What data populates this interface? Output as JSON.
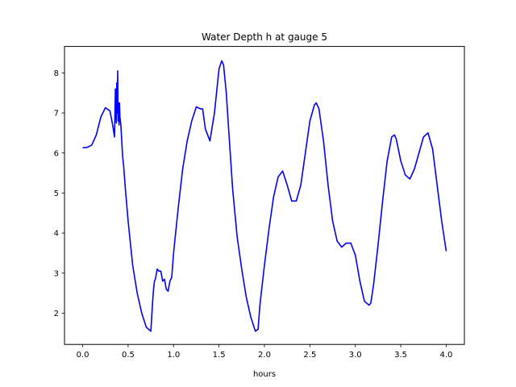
{
  "chart_data": {
    "type": "line",
    "title": "Water Depth h at gauge 5",
    "xlabel": "hours",
    "ylabel": "",
    "xlim": [
      -0.2,
      4.2
    ],
    "ylim": [
      1.22,
      8.66
    ],
    "xticks": [
      0.0,
      0.5,
      1.0,
      1.5,
      2.0,
      2.5,
      3.0,
      3.5,
      4.0
    ],
    "xtick_labels": [
      "0.0",
      "0.5",
      "1.0",
      "1.5",
      "2.0",
      "2.5",
      "3.0",
      "3.5",
      "4.0"
    ],
    "yticks": [
      2,
      3,
      4,
      5,
      6,
      7,
      8
    ],
    "ytick_labels": [
      "2",
      "3",
      "4",
      "5",
      "6",
      "7",
      "8"
    ],
    "grid": false,
    "series": [
      {
        "color": "#0000ff",
        "x": [
          0.0,
          0.05,
          0.1,
          0.15,
          0.2,
          0.25,
          0.3,
          0.33,
          0.35,
          0.36,
          0.37,
          0.375,
          0.38,
          0.385,
          0.39,
          0.395,
          0.4,
          0.405,
          0.41,
          0.42,
          0.43,
          0.44,
          0.45,
          0.47,
          0.5,
          0.55,
          0.6,
          0.65,
          0.7,
          0.75,
          0.77,
          0.78,
          0.79,
          0.8,
          0.82,
          0.84,
          0.86,
          0.88,
          0.9,
          0.92,
          0.94,
          0.96,
          0.98,
          1.0,
          1.05,
          1.1,
          1.15,
          1.2,
          1.25,
          1.3,
          1.32,
          1.35,
          1.4,
          1.45,
          1.5,
          1.53,
          1.55,
          1.58,
          1.6,
          1.65,
          1.7,
          1.75,
          1.8,
          1.85,
          1.9,
          1.93,
          1.95,
          2.0,
          2.05,
          2.1,
          2.15,
          2.2,
          2.25,
          2.3,
          2.35,
          2.4,
          2.45,
          2.5,
          2.55,
          2.57,
          2.6,
          2.65,
          2.7,
          2.75,
          2.8,
          2.85,
          2.9,
          2.95,
          3.0,
          3.05,
          3.1,
          3.15,
          3.17,
          3.2,
          3.25,
          3.3,
          3.35,
          3.4,
          3.43,
          3.45,
          3.5,
          3.55,
          3.6,
          3.65,
          3.7,
          3.75,
          3.8,
          3.85,
          3.9,
          3.95,
          4.0
        ],
        "y": [
          6.13,
          6.14,
          6.2,
          6.45,
          6.9,
          7.13,
          7.05,
          6.7,
          6.4,
          7.6,
          6.75,
          7.75,
          7.0,
          8.05,
          6.8,
          7.25,
          6.7,
          7.25,
          6.9,
          6.7,
          6.3,
          5.9,
          5.7,
          5.1,
          4.3,
          3.2,
          2.5,
          2.0,
          1.65,
          1.55,
          2.3,
          2.6,
          2.8,
          2.85,
          3.1,
          3.05,
          3.05,
          2.8,
          2.85,
          2.6,
          2.55,
          2.8,
          2.9,
          3.5,
          4.6,
          5.6,
          6.3,
          6.8,
          7.15,
          7.1,
          7.1,
          6.6,
          6.3,
          7.0,
          8.1,
          8.3,
          8.2,
          7.5,
          6.8,
          5.1,
          3.9,
          3.1,
          2.4,
          1.9,
          1.55,
          1.6,
          2.2,
          3.2,
          4.1,
          4.9,
          5.4,
          5.55,
          5.2,
          4.8,
          4.8,
          5.2,
          6.0,
          6.8,
          7.2,
          7.25,
          7.1,
          6.3,
          5.2,
          4.3,
          3.8,
          3.65,
          3.75,
          3.75,
          3.45,
          2.8,
          2.3,
          2.2,
          2.25,
          2.7,
          3.7,
          4.8,
          5.8,
          6.4,
          6.45,
          6.35,
          5.8,
          5.45,
          5.35,
          5.6,
          6.0,
          6.4,
          6.5,
          6.1,
          5.2,
          4.3,
          3.55
        ]
      }
    ]
  }
}
